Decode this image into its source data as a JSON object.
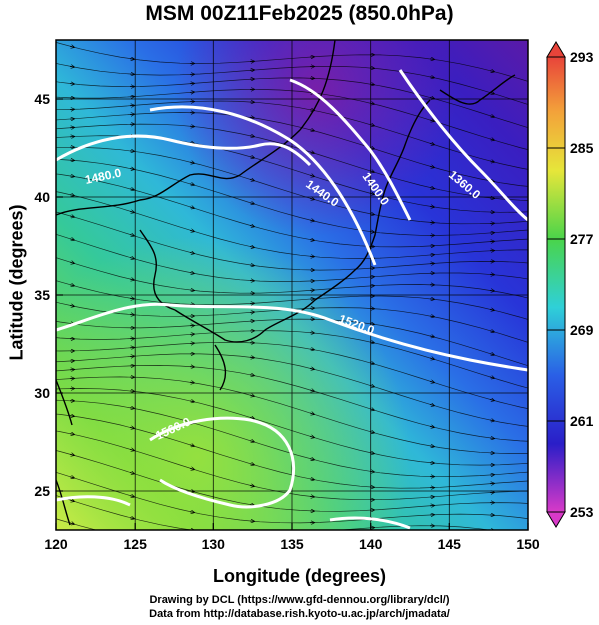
{
  "title": "MSM 00Z11Feb2025 (850.0hPa)",
  "x_axis": {
    "label": "Longitude (degrees)",
    "ticks": [
      "120",
      "125",
      "130",
      "135",
      "140",
      "145",
      "150"
    ]
  },
  "y_axis": {
    "label": "Latitude  (degrees)",
    "ticks": [
      "25",
      "30",
      "35",
      "40",
      "45"
    ]
  },
  "colorbar": {
    "ticks": [
      "293",
      "285",
      "277",
      "269",
      "261",
      "253"
    ]
  },
  "contours": [
    {
      "label": "1480.0"
    },
    {
      "label": "1440.0"
    },
    {
      "label": "1400.0"
    },
    {
      "label": "1360.0"
    },
    {
      "label": "1520.0"
    },
    {
      "label": "1560.0"
    }
  ],
  "credits": {
    "line1": "Drawing by DCL (https://www.gfd-dennou.org/library/dcl/)",
    "line2": "Data from http://database.rish.kyoto-u.ac.jp/arch/jmadata/"
  },
  "chart_data": {
    "type": "heatmap",
    "title": "MSM 00Z11Feb2025 (850.0hPa)",
    "xlabel": "Longitude (degrees)",
    "ylabel": "Latitude  (degrees)",
    "xlim": [
      120,
      150
    ],
    "ylim": [
      22.5,
      47.5
    ],
    "x_ticks": [
      120,
      125,
      130,
      135,
      140,
      145,
      150
    ],
    "y_ticks": [
      25,
      30,
      35,
      40,
      45
    ],
    "colorbar_range": [
      253,
      293
    ],
    "colorbar_ticks": [
      293,
      285,
      277,
      269,
      261,
      253
    ],
    "contour_levels": [
      1360,
      1400,
      1440,
      1480,
      1520,
      1560
    ],
    "grid": true
  }
}
